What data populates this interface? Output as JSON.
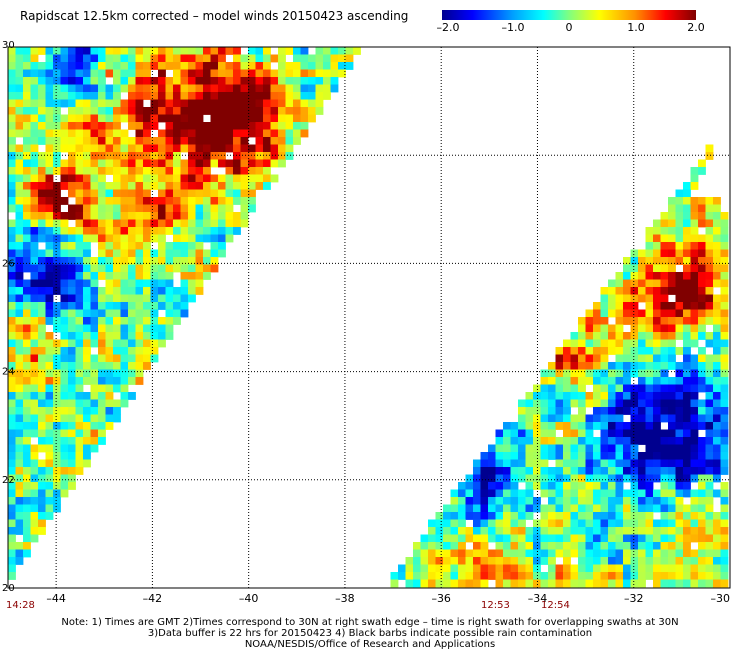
{
  "title": "Rapidscat 12.5km corrected – model winds 20150423 ascending",
  "colorbar": {
    "ticks": [
      "–2.0",
      "–1.0",
      "0",
      "1.0",
      "2.0"
    ],
    "tick_values": [
      -2.0,
      -1.0,
      0.0,
      1.0,
      2.0
    ]
  },
  "axes": {
    "lon_ticks": [
      -44,
      -42,
      -40,
      -38,
      -36,
      -34,
      -32,
      -30
    ],
    "lat_ticks": [
      30,
      26,
      24,
      22,
      20
    ],
    "lon_range": [
      -45.0,
      -30.0
    ],
    "lat_range": [
      20.0,
      30.0
    ],
    "lon_labels": [
      "–44",
      "–42",
      "–40",
      "–38",
      "–36",
      "–34",
      "–32",
      "–30"
    ],
    "lat_labels": [
      "30",
      "26",
      "24",
      "22",
      "20"
    ]
  },
  "times": {
    "t1": "14:28",
    "t2": "12:53",
    "t3": "12:54"
  },
  "notes": {
    "line1": "Note: 1) Times are GMT 2)Times correspond to 30N at right swath edge – time is right swath for overlapping swaths at 30N",
    "line2": "3)Data buffer is 22 hrs for 20150423 4) Black barbs indicate possible rain contamination",
    "line3": "NOAA/NESDIS/Office of Research and Applications"
  }
}
